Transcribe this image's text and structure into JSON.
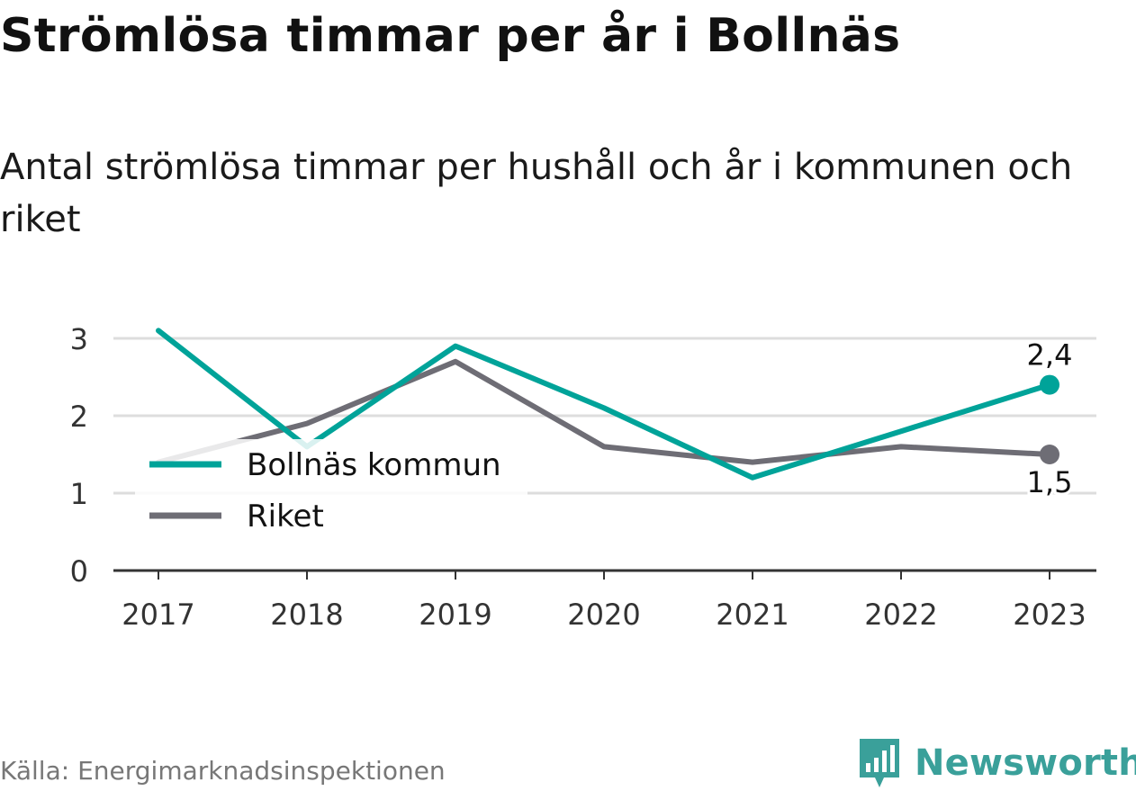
{
  "title": "Strömlösa timmar per år i Bollnäs",
  "subtitle": "Antal strömlösa timmar per hushåll och år i kommunen och riket",
  "source": "Källa: Energimarknadsinspektionen",
  "brand": {
    "name": "Newsworthy",
    "logo_icon": "newsworthy-bar-chart-icon"
  },
  "colors": {
    "kommun": "#00a399",
    "riket": "#6e6d75",
    "grid": "#dddddd",
    "axis": "#333333"
  },
  "chart_data": {
    "type": "line",
    "title": "",
    "xlabel": "",
    "ylabel": "",
    "x": [
      "2017",
      "2018",
      "2019",
      "2020",
      "2021",
      "2022",
      "2023"
    ],
    "ylim": [
      0,
      3
    ],
    "yticks": [
      0,
      1,
      2,
      3
    ],
    "grid": true,
    "legend_position": "left-middle",
    "series": [
      {
        "name": "Bollnäs kommun",
        "values": [
          3.1,
          1.6,
          2.9,
          2.1,
          1.2,
          1.8,
          2.4
        ],
        "end_label": "2,4",
        "color_key": "kommun"
      },
      {
        "name": "Riket",
        "values": [
          1.4,
          1.9,
          2.7,
          1.6,
          1.4,
          1.6,
          1.5
        ],
        "end_label": "1,5",
        "color_key": "riket"
      }
    ]
  }
}
